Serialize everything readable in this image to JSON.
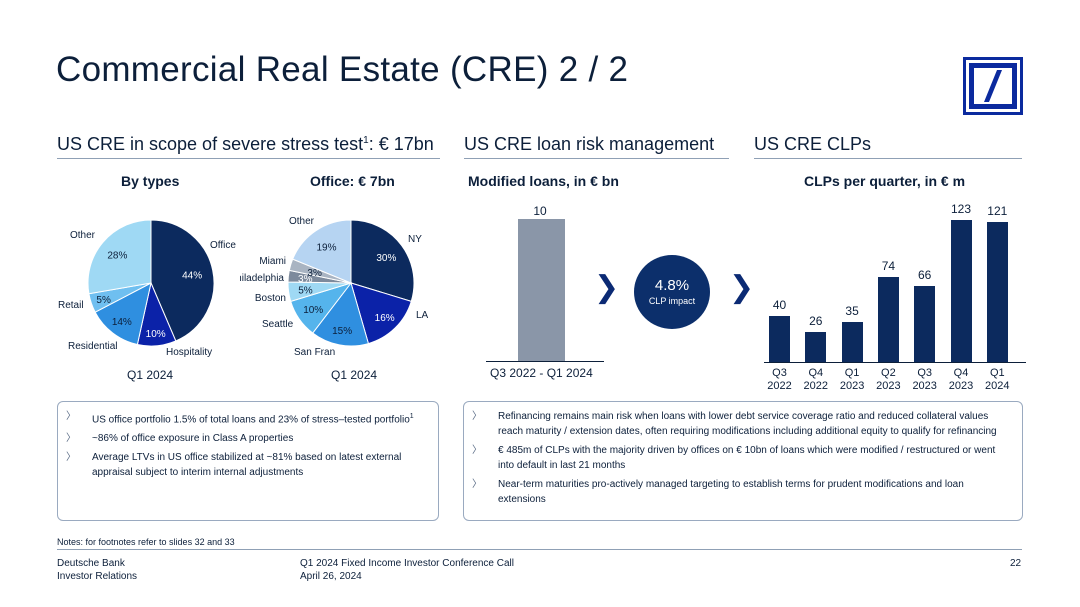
{
  "title": "Commercial Real Estate (CRE) 2 / 2",
  "sections": {
    "s1": "US CRE in scope of severe stress test",
    "s1_sup": "1",
    "s1_tail": ": € 17bn",
    "s2": "US CRE loan risk management",
    "s3": "US CRE CLPs"
  },
  "subheads": {
    "by_types": "By types",
    "office": "Office: € 7bn",
    "modified": "Modified loans, in € bn",
    "clps": "CLPs per quarter, in € m"
  },
  "period_labels": {
    "types": "Q1 2024",
    "office": "Q1 2024"
  },
  "clp_impact": {
    "value": "4.8%",
    "label": "CLP impact"
  },
  "chevron": "❯",
  "chart_data": [
    {
      "type": "pie",
      "title": "By types",
      "labels": [
        "Office",
        "Hospitality",
        "Residential",
        "Retail",
        "Other"
      ],
      "values": [
        44,
        10,
        14,
        5,
        28
      ],
      "value_labels": [
        "44%",
        "10%",
        "14%",
        "5%",
        "28%"
      ],
      "colors": [
        "#0c2a5e",
        "#0b22a8",
        "#2f8fe0",
        "#6fbff0",
        "#9fd9f4"
      ]
    },
    {
      "type": "pie",
      "title": "Office: € 7bn",
      "labels": [
        "NY",
        "LA",
        "San Fran",
        "Seattle",
        "Boston",
        "Philadelphia",
        "Miami",
        "Other"
      ],
      "values": [
        30,
        16,
        15,
        10,
        5,
        3,
        3,
        19
      ],
      "value_labels": [
        "30%",
        "16%",
        "15%",
        "10%",
        "5%",
        "3%",
        "3%",
        "19%"
      ],
      "colors": [
        "#0c2a5e",
        "#0b22a8",
        "#2f8fe0",
        "#55b4ec",
        "#9fd9f4",
        "#7d8a9c",
        "#a9b4c2",
        "#b6d4f2"
      ]
    },
    {
      "type": "bar",
      "title": "Modified loans, in € bn",
      "categories": [
        "Q3 2022 - Q1 2024"
      ],
      "values": [
        10
      ],
      "color": "#8a96a8"
    },
    {
      "type": "bar",
      "title": "CLPs per quarter, in € m",
      "categories": [
        [
          "Q3",
          "2022"
        ],
        [
          "Q4",
          "2022"
        ],
        [
          "Q1",
          "2023"
        ],
        [
          "Q2",
          "2023"
        ],
        [
          "Q3",
          "2023"
        ],
        [
          "Q4",
          "2023"
        ],
        [
          "Q1",
          "2024"
        ]
      ],
      "values": [
        40,
        26,
        35,
        74,
        66,
        123,
        121
      ],
      "color": "#0c2a5e"
    }
  ],
  "left_box": [
    "US office portfolio 1.5% of total loans and 23% of stress–tested portfolio",
    "~86% of office exposure in Class A properties",
    "Average LTVs in US office stabilized at ~81% based on latest external appraisal subject to interim internal adjustments"
  ],
  "left_box_sup": "1",
  "right_box": [
    "Refinancing remains main risk when loans with lower debt service coverage ratio and reduced collateral values reach maturity / extension dates, often requiring modifications including additional equity to qualify for refinancing",
    "€ 485m of CLPs with the majority driven by offices on € 10bn of loans which were modified / restructured or went into default in last 21 months",
    "Near-term maturities pro-actively managed targeting to establish terms for prudent modifications and loan extensions"
  ],
  "bullet_glyph": "〉",
  "notes": "Notes: for footnotes refer to slides 32 and 33",
  "footer": {
    "org1": "Deutsche Bank",
    "org2": "Investor Relations",
    "event1": "Q1 2024 Fixed Income Investor Conference Call",
    "event2": "April 26, 2024",
    "page": "22"
  }
}
